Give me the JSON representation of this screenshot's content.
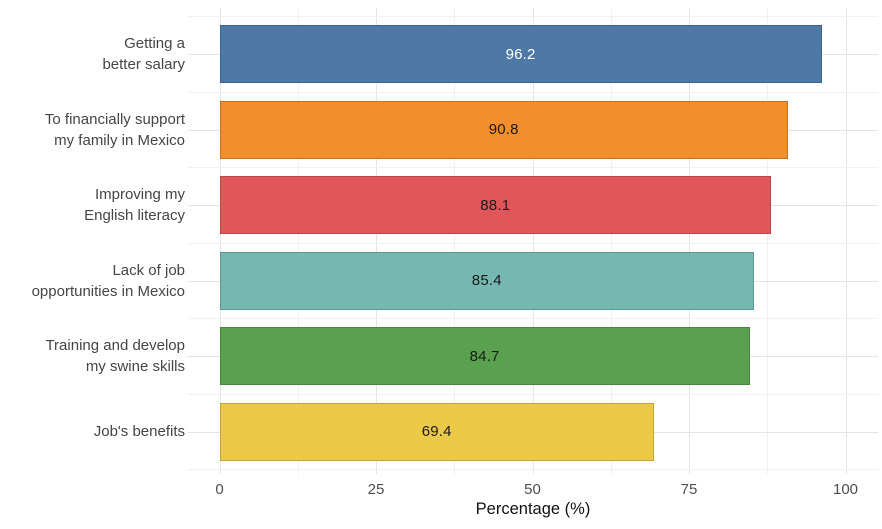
{
  "chart_data": {
    "type": "bar",
    "orientation": "horizontal",
    "title": "",
    "xlabel": "Percentage (%)",
    "ylabel": "",
    "categories": [
      "Getting a better salary",
      "To financially support my family in Mexico",
      "Improving my English literacy",
      "Lack of job opportunities in Mexico",
      "Training and develop my swine skills",
      "Job's benefits"
    ],
    "category_label_lines": [
      [
        "Getting a",
        "better salary"
      ],
      [
        "To financially support",
        "my family in Mexico"
      ],
      [
        "Improving my",
        "English literacy"
      ],
      [
        "Lack of job",
        "opportunities in Mexico"
      ],
      [
        "Training and develop",
        "my swine skills"
      ],
      [
        "Job's benefits"
      ]
    ],
    "values": [
      96.2,
      90.8,
      88.1,
      85.4,
      84.7,
      69.4
    ],
    "value_labels": [
      "96.2",
      "90.8",
      "88.1",
      "85.4",
      "84.7",
      "69.4"
    ],
    "bar_colors": [
      "#4E79A7",
      "#F28E2B",
      "#E15759",
      "#76B7B2",
      "#59A14F",
      "#EDC948"
    ],
    "value_label_colors": [
      "#FFFFFF",
      "#1A1A1A",
      "#1A1A1A",
      "#1A1A1A",
      "#1A1A1A",
      "#1A1A1A"
    ],
    "x_ticks": [
      0,
      25,
      50,
      75,
      100
    ],
    "x_tick_labels": [
      "0",
      "25",
      "50",
      "75",
      "100"
    ],
    "x_minor_ticks": [
      12.5,
      37.5,
      62.5,
      87.5
    ],
    "xlim": [
      0,
      105
    ],
    "grid": "major+minor",
    "legend": "none",
    "background_color": "#FFFFFF",
    "grid_major_color": "#E4E4E4",
    "grid_minor_color": "#F0F0F0"
  }
}
